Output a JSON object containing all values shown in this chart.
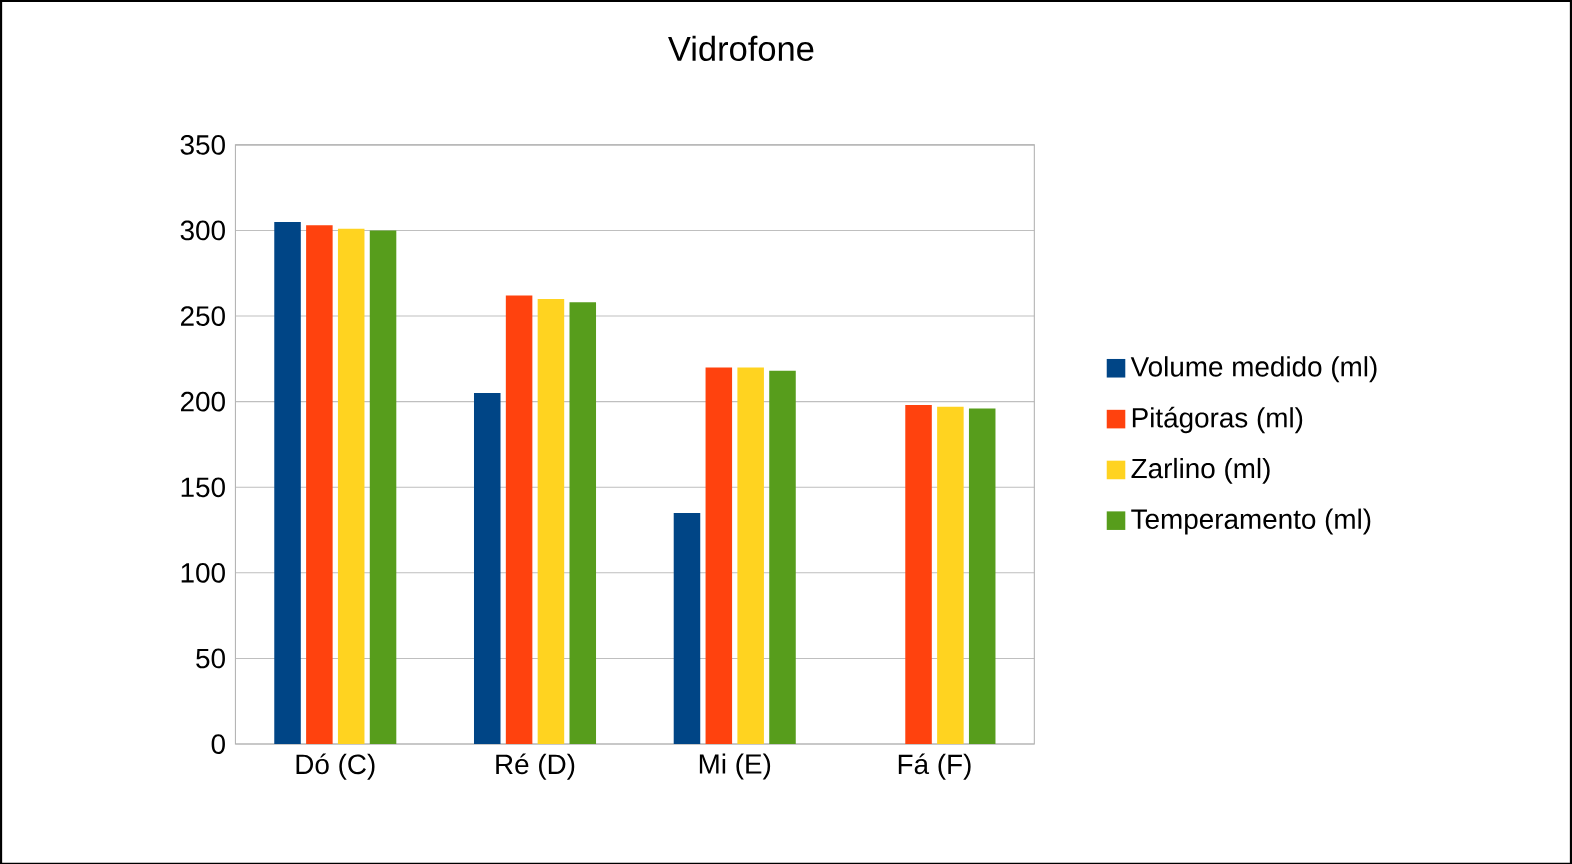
{
  "chart_data": {
    "type": "bar",
    "title": "Vidrofone",
    "categories": [
      "Dó (C)",
      "Ré (D)",
      "Mi (E)",
      "Fá (F)"
    ],
    "series": [
      {
        "name": "Volume medido (ml)",
        "color": "#004586",
        "values": [
          305,
          205,
          135,
          0
        ]
      },
      {
        "name": "Pitágoras (ml)",
        "color": "#ff420e",
        "values": [
          303,
          262,
          220,
          198
        ]
      },
      {
        "name": "Zarlino (ml)",
        "color": "#ffd320",
        "values": [
          301,
          260,
          220,
          197
        ]
      },
      {
        "name": "Temperamento (ml)",
        "color": "#579d1c",
        "values": [
          300,
          258,
          218,
          196
        ]
      }
    ],
    "ylim": [
      0,
      350
    ],
    "yticks": [
      0,
      50,
      100,
      150,
      200,
      250,
      300,
      350
    ],
    "grid": "y",
    "legend": "right"
  }
}
